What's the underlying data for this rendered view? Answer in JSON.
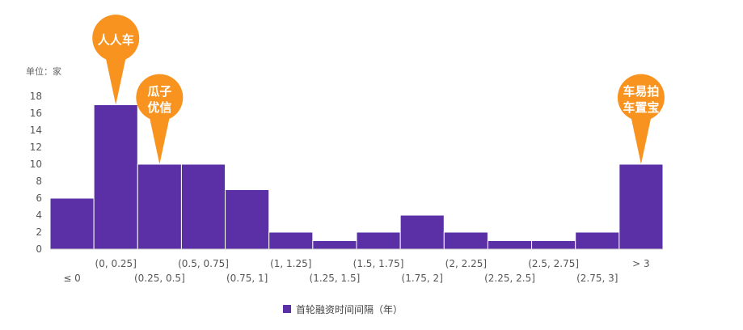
{
  "chart_data": {
    "type": "bar",
    "unit_label": "单位：家",
    "categories": [
      "≤ 0",
      "(0, 0.25]",
      "(0.25, 0.5]",
      "(0.5, 0.75]",
      "(0.75, 1]",
      "(1, 1.25]",
      "(1.25, 1.5]",
      "(1.5, 1.75]",
      "(1.75, 2]",
      "(2, 2.25]",
      "(2.25, 2.5]",
      "(2.5, 2.75]",
      "(2.75, 3]",
      "> 3"
    ],
    "series": [
      {
        "name": "首轮融资时间间隔（年）",
        "values": [
          6,
          17,
          10,
          10,
          7,
          2,
          1,
          2,
          4,
          2,
          1,
          1,
          2,
          10
        ]
      }
    ],
    "ylim": [
      0,
      18
    ],
    "yticks": [
      0,
      2,
      4,
      6,
      8,
      10,
      12,
      14,
      16,
      18
    ],
    "grid": false,
    "legend_position": "bottom-center",
    "bar_color": "#5b2fa6",
    "annotations": [
      {
        "category_index": 1,
        "lines": [
          "人人车"
        ]
      },
      {
        "category_index": 2,
        "lines": [
          "瓜子",
          "优信"
        ]
      },
      {
        "category_index": 13,
        "lines": [
          "车易拍",
          "车置宝"
        ]
      }
    ],
    "annotation_color": "#f7931e"
  }
}
